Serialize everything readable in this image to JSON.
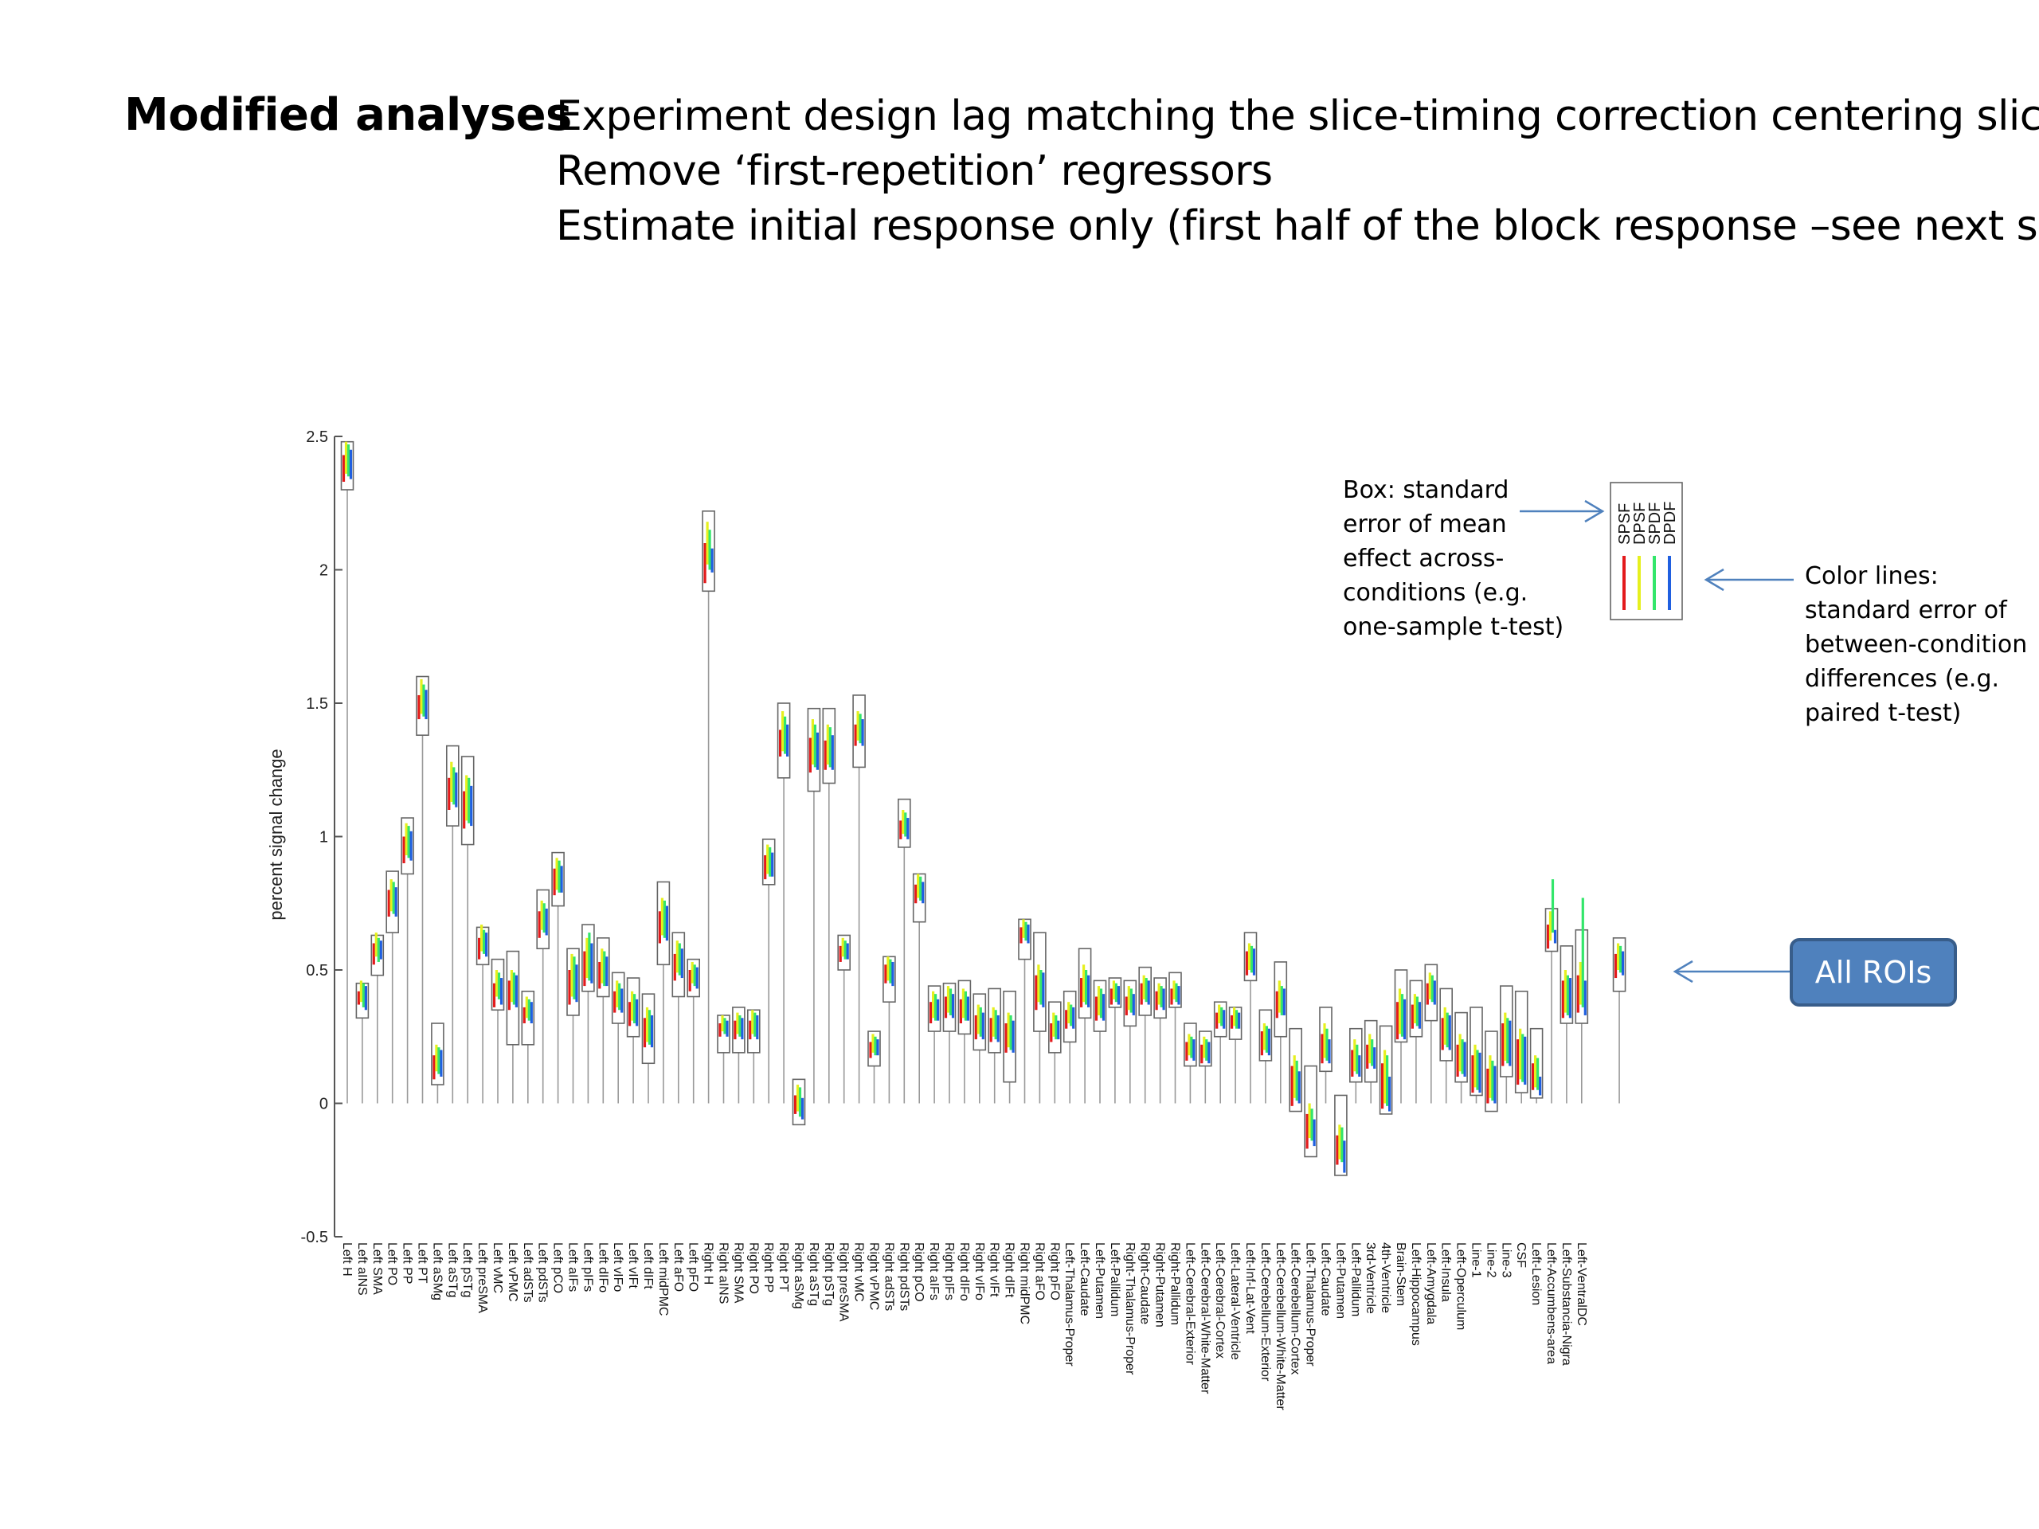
{
  "slide": {
    "heading": "Modified analyses",
    "bullets": [
      "Experiment design lag matching the slice-timing correction centering slice",
      "Remove ‘first-repetition’ regressors",
      "Estimate initial response only (first half of the block response –see next slide)"
    ]
  },
  "annotations": {
    "box_note": [
      "Box: standard",
      "error of mean",
      "effect across-",
      "conditions (e.g.",
      "one-sample t-test)"
    ],
    "lines_note": [
      "Color lines:",
      "standard error of",
      "between-condition",
      "differences (e.g.",
      "paired t-test)"
    ],
    "all_rois_button": "All ROIs"
  },
  "colors": {
    "SPSF": "#e31a1c",
    "DPSF": "#e6f01e",
    "SPDF": "#33e66b",
    "DPDF": "#1f5fe0",
    "box": "#666666",
    "axis": "#555555",
    "arrow": "#4f81bd"
  },
  "chart_data": {
    "type": "box",
    "ylabel": "percent signal change",
    "ylim": [
      -0.5,
      2.5
    ],
    "yticks": [
      -0.5,
      0,
      0.5,
      1,
      1.5,
      2,
      2.5
    ],
    "ytick_labels": [
      "-0.5",
      "0",
      "0.5",
      "1",
      "1.5",
      "2",
      "2.5"
    ],
    "legend": [
      "SPSF",
      "DPSF",
      "SPDF",
      "DPDF"
    ],
    "legend_position": "top-right",
    "categories": [
      "Left H",
      "Left aINS",
      "Left SMA",
      "Left PO",
      "Left PP",
      "Left PT",
      "Left aSMg",
      "Left aSTg",
      "Left pSTg",
      "Left preSMA",
      "Left vMC",
      "Left vPMC",
      "Left adSTs",
      "Left pdSTs",
      "Left pCO",
      "Left aIFs",
      "Left pIFs",
      "Left dIFo",
      "Left vIFo",
      "Left vIFt",
      "Left dIFt",
      "Left midPMC",
      "Left aFO",
      "Left pFO",
      "Right H",
      "Right aINS",
      "Right SMA",
      "Right PO",
      "Right PP",
      "Right PT",
      "Right aSMg",
      "Right aSTg",
      "Right pSTg",
      "Right preSMA",
      "Right vMC",
      "Right vPMC",
      "Right adSTs",
      "Right pdSTs",
      "Right pCO",
      "Right aIFs",
      "Right pIFs",
      "Right dIFo",
      "Right vIFo",
      "Right vIFt",
      "Right dIFt",
      "Right midPMC",
      "Right aFO",
      "Right pFO",
      "Left-Thalamus-Proper",
      "Left-Caudate",
      "Left-Putamen",
      "Left-Pallidum",
      "Right-Thalamus-Proper",
      "Right-Caudate",
      "Right-Putamen",
      "Right-Pallidum",
      "Left-Cerebral-Exterior",
      "Left-Cerebral-White-Matter",
      "Left-Cerebral-Cortex",
      "Left-Lateral-Ventricle",
      "Left-Inf-Lat-Vent",
      "Left-Cerebellum-Exterior",
      "Left-Cerebellum-White-Matter",
      "Left-Cerebellum-Cortex",
      "Left-Thalamus-Proper",
      "Left-Caudate",
      "Left-Putamen",
      "Left-Pallidum",
      "3rd-Ventricle",
      "4th-Ventricle",
      "Brain-Stem",
      "Left-Hippocampus",
      "Left-Amygdala",
      "Left-Insula",
      "Left-Operculum",
      "Line-1",
      "Line-2",
      "Line-3",
      "CSF",
      "Left-Lesion",
      "Left-Accumbens-area",
      "Left-Substancia-Nigra",
      "Left-VentralDC"
    ],
    "box_low": [
      2.3,
      0.32,
      0.48,
      0.64,
      0.86,
      1.38,
      0.07,
      1.04,
      0.97,
      0.52,
      0.35,
      0.22,
      0.22,
      0.58,
      0.74,
      0.33,
      0.42,
      0.4,
      0.3,
      0.25,
      0.15,
      0.52,
      0.4,
      0.4,
      1.92,
      0.19,
      0.19,
      0.19,
      0.82,
      1.22,
      -0.08,
      1.17,
      1.2,
      0.5,
      1.26,
      0.14,
      0.38,
      0.96,
      0.68,
      0.27,
      0.27,
      0.26,
      0.2,
      0.19,
      0.08,
      0.54,
      0.27,
      0.19,
      0.23,
      0.32,
      0.27,
      0.36,
      0.29,
      0.33,
      0.32,
      0.36,
      0.14,
      0.14,
      0.25,
      0.24,
      0.46,
      0.16,
      0.25,
      -0.03,
      -0.2,
      0.12,
      -0.27,
      0.08,
      0.08,
      -0.04,
      0.23,
      0.25,
      0.31,
      0.16,
      0.08,
      0.03,
      -0.03,
      0.1,
      0.04,
      0.02,
      0.57,
      0.3,
      0.3
    ],
    "box_high": [
      2.48,
      0.45,
      0.63,
      0.87,
      1.07,
      1.6,
      0.3,
      1.34,
      1.3,
      0.66,
      0.54,
      0.57,
      0.42,
      0.8,
      0.94,
      0.58,
      0.67,
      0.62,
      0.49,
      0.47,
      0.41,
      0.83,
      0.64,
      0.54,
      2.22,
      0.33,
      0.36,
      0.35,
      0.99,
      1.5,
      0.09,
      1.48,
      1.48,
      0.63,
      1.53,
      0.27,
      0.55,
      1.14,
      0.86,
      0.44,
      0.45,
      0.46,
      0.41,
      0.43,
      0.42,
      0.69,
      0.64,
      0.38,
      0.42,
      0.58,
      0.46,
      0.47,
      0.46,
      0.51,
      0.47,
      0.49,
      0.3,
      0.27,
      0.38,
      0.36,
      0.64,
      0.35,
      0.53,
      0.28,
      0.14,
      0.36,
      0.03,
      0.28,
      0.31,
      0.29,
      0.5,
      0.46,
      0.52,
      0.43,
      0.34,
      0.36,
      0.27,
      0.44,
      0.42,
      0.28,
      0.73,
      0.59,
      0.65
    ],
    "line_low": [
      [
        2.33,
        0.37,
        0.52,
        0.7,
        0.9,
        1.44,
        0.09,
        1.1,
        1.03,
        0.54,
        0.36,
        0.35,
        0.3,
        0.62,
        0.78,
        0.37,
        0.44,
        0.43,
        0.34,
        0.29,
        0.21,
        0.6,
        0.46,
        0.42,
        1.95,
        0.25,
        0.24,
        0.24,
        0.84,
        1.3,
        -0.04,
        1.24,
        1.25,
        0.53,
        1.34,
        0.17,
        0.45,
        0.99,
        0.75,
        0.3,
        0.32,
        0.3,
        0.24,
        0.23,
        0.19,
        0.6,
        0.35,
        0.23,
        0.28,
        0.36,
        0.31,
        0.37,
        0.33,
        0.37,
        0.35,
        0.37,
        0.16,
        0.15,
        0.28,
        0.28,
        0.48,
        0.18,
        0.32,
        -0.01,
        -0.17,
        0.15,
        -0.23,
        0.1,
        0.13,
        -0.02,
        0.24,
        0.28,
        0.37,
        0.2,
        0.1,
        0.04,
        0.0,
        0.14,
        0.07,
        0.05,
        0.58,
        0.32,
        0.34
      ],
      [
        2.36,
        0.38,
        0.55,
        0.72,
        0.93,
        1.46,
        0.12,
        1.13,
        1.06,
        0.57,
        0.4,
        0.38,
        0.32,
        0.65,
        0.8,
        0.4,
        0.47,
        0.45,
        0.36,
        0.31,
        0.23,
        0.63,
        0.49,
        0.45,
        2.02,
        0.27,
        0.26,
        0.26,
        0.86,
        1.32,
        -0.03,
        1.27,
        1.27,
        0.55,
        1.36,
        0.19,
        0.46,
        1.01,
        0.77,
        0.32,
        0.34,
        0.32,
        0.26,
        0.25,
        0.21,
        0.62,
        0.38,
        0.25,
        0.3,
        0.38,
        0.33,
        0.39,
        0.35,
        0.39,
        0.37,
        0.39,
        0.18,
        0.17,
        0.3,
        0.29,
        0.5,
        0.2,
        0.34,
        0.02,
        -0.13,
        0.17,
        -0.21,
        0.12,
        0.15,
        0.0,
        0.26,
        0.3,
        0.39,
        0.22,
        0.12,
        0.06,
        0.02,
        0.16,
        0.09,
        0.06,
        0.61,
        0.34,
        0.37
      ],
      [
        2.35,
        0.36,
        0.53,
        0.71,
        0.92,
        1.45,
        0.11,
        1.12,
        1.05,
        0.56,
        0.39,
        0.37,
        0.31,
        0.64,
        0.79,
        0.39,
        0.46,
        0.44,
        0.35,
        0.3,
        0.22,
        0.62,
        0.48,
        0.44,
        2.0,
        0.26,
        0.25,
        0.25,
        0.85,
        1.31,
        -0.05,
        1.26,
        1.26,
        0.54,
        1.35,
        0.18,
        0.45,
        1.0,
        0.76,
        0.31,
        0.33,
        0.31,
        0.25,
        0.24,
        0.2,
        0.61,
        0.37,
        0.24,
        0.29,
        0.37,
        0.32,
        0.38,
        0.34,
        0.38,
        0.36,
        0.38,
        0.17,
        0.16,
        0.29,
        0.28,
        0.49,
        0.19,
        0.33,
        0.01,
        -0.14,
        0.16,
        -0.22,
        0.11,
        0.14,
        -0.01,
        0.25,
        0.29,
        0.38,
        0.21,
        0.11,
        0.05,
        0.01,
        0.15,
        0.08,
        0.05,
        0.64,
        0.33,
        0.36
      ],
      [
        2.34,
        0.35,
        0.54,
        0.7,
        0.91,
        1.44,
        0.1,
        1.11,
        1.04,
        0.55,
        0.37,
        0.36,
        0.3,
        0.63,
        0.79,
        0.38,
        0.45,
        0.44,
        0.34,
        0.29,
        0.21,
        0.61,
        0.47,
        0.43,
        1.99,
        0.25,
        0.24,
        0.24,
        0.85,
        1.3,
        -0.06,
        1.25,
        1.25,
        0.54,
        1.34,
        0.18,
        0.44,
        0.99,
        0.75,
        0.31,
        0.32,
        0.31,
        0.24,
        0.23,
        0.19,
        0.6,
        0.36,
        0.24,
        0.28,
        0.36,
        0.31,
        0.37,
        0.33,
        0.37,
        0.35,
        0.37,
        0.16,
        0.15,
        0.28,
        0.28,
        0.48,
        0.18,
        0.33,
        0.0,
        -0.16,
        0.15,
        -0.26,
        0.1,
        0.13,
        -0.03,
        0.24,
        0.28,
        0.37,
        0.2,
        0.1,
        0.04,
        0.0,
        0.14,
        0.07,
        0.03,
        0.6,
        0.32,
        0.33
      ]
    ],
    "line_high": [
      [
        2.43,
        0.42,
        0.6,
        0.8,
        1.0,
        1.53,
        0.18,
        1.22,
        1.17,
        0.62,
        0.45,
        0.46,
        0.36,
        0.72,
        0.88,
        0.5,
        0.57,
        0.53,
        0.42,
        0.38,
        0.32,
        0.72,
        0.56,
        0.5,
        2.1,
        0.3,
        0.31,
        0.31,
        0.93,
        1.4,
        0.03,
        1.37,
        1.36,
        0.59,
        1.42,
        0.23,
        0.52,
        1.06,
        0.82,
        0.38,
        0.4,
        0.39,
        0.33,
        0.32,
        0.3,
        0.66,
        0.48,
        0.3,
        0.35,
        0.47,
        0.4,
        0.43,
        0.4,
        0.45,
        0.42,
        0.43,
        0.23,
        0.22,
        0.34,
        0.33,
        0.57,
        0.27,
        0.42,
        0.14,
        -0.04,
        0.26,
        -0.12,
        0.2,
        0.22,
        0.15,
        0.38,
        0.37,
        0.45,
        0.32,
        0.22,
        0.18,
        0.13,
        0.3,
        0.24,
        0.15,
        0.67,
        0.46,
        0.48
      ],
      [
        2.48,
        0.46,
        0.64,
        0.84,
        1.05,
        1.59,
        0.22,
        1.28,
        1.23,
        0.67,
        0.5,
        0.5,
        0.4,
        0.76,
        0.92,
        0.56,
        0.62,
        0.58,
        0.46,
        0.42,
        0.36,
        0.77,
        0.61,
        0.53,
        2.18,
        0.33,
        0.34,
        0.35,
        0.97,
        1.47,
        0.07,
        1.44,
        1.42,
        0.62,
        1.47,
        0.26,
        0.55,
        1.1,
        0.86,
        0.42,
        0.44,
        0.43,
        0.37,
        0.36,
        0.34,
        0.69,
        0.52,
        0.34,
        0.38,
        0.52,
        0.44,
        0.46,
        0.44,
        0.48,
        0.45,
        0.46,
        0.26,
        0.25,
        0.37,
        0.36,
        0.6,
        0.3,
        0.46,
        0.18,
        0.0,
        0.3,
        -0.08,
        0.24,
        0.26,
        0.2,
        0.43,
        0.41,
        0.49,
        0.36,
        0.26,
        0.22,
        0.18,
        0.34,
        0.28,
        0.18,
        0.72,
        0.5,
        0.53
      ],
      [
        2.47,
        0.45,
        0.62,
        0.83,
        1.04,
        1.57,
        0.21,
        1.26,
        1.22,
        0.65,
        0.49,
        0.49,
        0.39,
        0.75,
        0.91,
        0.55,
        0.64,
        0.57,
        0.45,
        0.41,
        0.35,
        0.76,
        0.6,
        0.52,
        2.15,
        0.32,
        0.33,
        0.34,
        0.96,
        1.45,
        0.06,
        1.42,
        1.41,
        0.61,
        1.46,
        0.25,
        0.54,
        1.09,
        0.85,
        0.41,
        0.43,
        0.42,
        0.36,
        0.35,
        0.33,
        0.68,
        0.5,
        0.33,
        0.37,
        0.5,
        0.43,
        0.45,
        0.43,
        0.47,
        0.44,
        0.45,
        0.25,
        0.24,
        0.36,
        0.35,
        0.59,
        0.29,
        0.44,
        0.16,
        -0.02,
        0.28,
        -0.09,
        0.22,
        0.24,
        0.18,
        0.41,
        0.4,
        0.48,
        0.34,
        0.24,
        0.2,
        0.16,
        0.32,
        0.26,
        0.17,
        0.84,
        0.48,
        0.77
      ],
      [
        2.45,
        0.44,
        0.61,
        0.81,
        1.02,
        1.55,
        0.2,
        1.24,
        1.19,
        0.64,
        0.47,
        0.48,
        0.38,
        0.73,
        0.89,
        0.52,
        0.6,
        0.55,
        0.43,
        0.39,
        0.33,
        0.74,
        0.58,
        0.51,
        2.08,
        0.31,
        0.32,
        0.33,
        0.94,
        1.42,
        0.02,
        1.39,
        1.38,
        0.6,
        1.44,
        0.24,
        0.53,
        1.07,
        0.83,
        0.39,
        0.41,
        0.4,
        0.34,
        0.33,
        0.31,
        0.67,
        0.49,
        0.31,
        0.36,
        0.48,
        0.41,
        0.44,
        0.41,
        0.46,
        0.43,
        0.44,
        0.24,
        0.23,
        0.35,
        0.34,
        0.58,
        0.28,
        0.43,
        0.12,
        -0.06,
        0.24,
        -0.14,
        0.18,
        0.21,
        0.1,
        0.39,
        0.38,
        0.46,
        0.33,
        0.23,
        0.19,
        0.14,
        0.31,
        0.25,
        0.1,
        0.65,
        0.47,
        0.46
      ]
    ],
    "all_rois": {
      "box_low": 0.42,
      "box_high": 0.62,
      "line_low": [
        0.47,
        0.5,
        0.49,
        0.48
      ],
      "line_high": [
        0.56,
        0.6,
        0.59,
        0.57
      ]
    }
  }
}
